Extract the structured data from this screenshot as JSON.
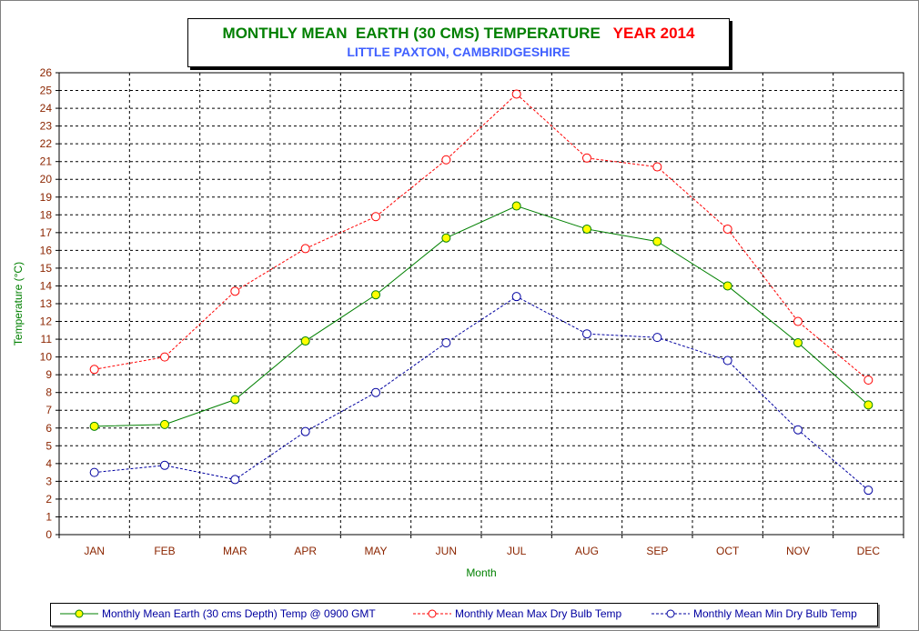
{
  "title": {
    "line1_part1": "MONTHLY MEAN  EARTH (30 CMS) TEMPERATURE",
    "line1_part2": "YEAR 2014",
    "line2": "LITTLE PAXTON, CAMBRIDGESHIRE"
  },
  "colors": {
    "earth": "#008000",
    "earth_marker": "#ffff00",
    "max": "#ff0000",
    "min": "#0000a0",
    "axis_text": "#8b2500",
    "axis_label": "#008000"
  },
  "chart_data": {
    "type": "line",
    "xlabel": "Month",
    "ylabel": "Temperature (°C)",
    "ylim": [
      0,
      26
    ],
    "yticks": [
      "0",
      "1",
      "2",
      "3",
      "4",
      "5",
      "6",
      "7",
      "8",
      "9",
      "10",
      "11",
      "12",
      "13",
      "14",
      "15",
      "16",
      "17",
      "18",
      "19",
      "20",
      "21",
      "22",
      "23",
      "24",
      "25",
      "26"
    ],
    "grid": true,
    "legend_position": "bottom",
    "categories": [
      "JAN",
      "FEB",
      "MAR",
      "APR",
      "MAY",
      "JUN",
      "JUL",
      "AUG",
      "SEP",
      "OCT",
      "NOV",
      "DEC"
    ],
    "series": [
      {
        "name": "Monthly Mean Earth (30 cms Depth) Temp @ 0900 GMT",
        "values": [
          6.1,
          6.2,
          7.6,
          10.9,
          13.5,
          16.7,
          18.5,
          17.2,
          16.5,
          14.0,
          10.8,
          7.3
        ]
      },
      {
        "name": "Monthly Mean Max Dry Bulb Temp",
        "values": [
          9.3,
          10.0,
          13.7,
          16.1,
          17.9,
          21.1,
          24.8,
          21.2,
          20.7,
          17.2,
          12.0,
          8.7
        ]
      },
      {
        "name": "Monthly Mean Min Dry Bulb Temp",
        "values": [
          3.5,
          3.9,
          3.1,
          5.8,
          8.0,
          10.8,
          13.4,
          11.3,
          11.1,
          9.8,
          5.9,
          2.5
        ]
      }
    ]
  }
}
